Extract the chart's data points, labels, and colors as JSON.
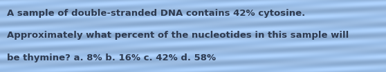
{
  "text_line1": "A sample of double-stranded DNA contains 42% cytosine.",
  "text_line2": "Approximately what percent of the nucleotides in this sample will",
  "text_line3": "be thymine? a. 8% b. 16% c. 42% d. 58%",
  "background_color_top": "#b0d0ea",
  "background_color_base": "#a0c4e4",
  "text_color": "#2d3a50",
  "font_size": 9.5,
  "fig_width": 5.58,
  "fig_height": 1.05,
  "dpi": 100
}
